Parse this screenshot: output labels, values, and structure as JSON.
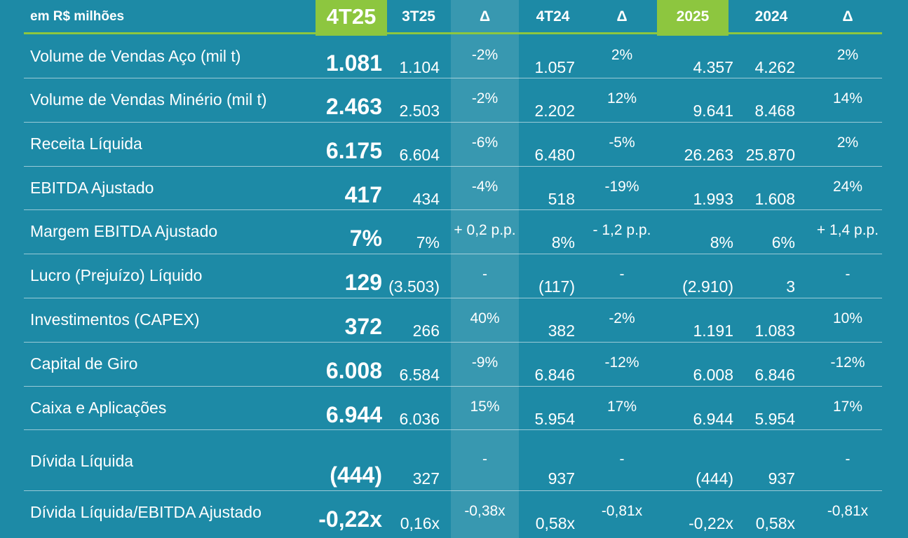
{
  "header": {
    "unit_label": "em R$ milhões",
    "col_4t25": "4T25",
    "col_3t25": "3T25",
    "col_delta1": "Δ",
    "col_4t24": "4T24",
    "col_delta2": "Δ",
    "col_2025": "2025",
    "col_2024": "2024",
    "col_delta3": "Δ"
  },
  "colors": {
    "background": "#1d8aa6",
    "accent": "#8dc63f",
    "text": "#ffffff"
  },
  "rows": [
    {
      "label": "Volume de Vendas Aço (mil t)",
      "q4_25": "1.081",
      "q3_25": "1.104",
      "d1": "-2%",
      "q4_24": "1.057",
      "d2": "2%",
      "y2025": "4.357",
      "y2024": "4.262",
      "d3": "2%"
    },
    {
      "label": "Volume de Vendas Minério (mil t)",
      "q4_25": "2.463",
      "q3_25": "2.503",
      "d1": "-2%",
      "q4_24": "2.202",
      "d2": "12%",
      "y2025": "9.641",
      "y2024": "8.468",
      "d3": "14%"
    },
    {
      "label": "Receita Líquida",
      "q4_25": "6.175",
      "q3_25": "6.604",
      "d1": "-6%",
      "q4_24": "6.480",
      "d2": "-5%",
      "y2025": "26.263",
      "y2024": "25.870",
      "d3": "2%"
    },
    {
      "label": "EBITDA Ajustado",
      "q4_25": "417",
      "q3_25": "434",
      "d1": "-4%",
      "q4_24": "518",
      "d2": "-19%",
      "y2025": "1.993",
      "y2024": "1.608",
      "d3": "24%"
    },
    {
      "label": "Margem EBITDA Ajustado",
      "q4_25": "7%",
      "q3_25": "7%",
      "d1": "+ 0,2 p.p.",
      "q4_24": "8%",
      "d2": "- 1,2 p.p.",
      "y2025": "8%",
      "y2024": "6%",
      "d3": "+ 1,4 p.p."
    },
    {
      "label": "Lucro (Prejuízo) Líquido",
      "q4_25": "129",
      "q3_25": "(3.503)",
      "d1": "-",
      "q4_24": "(117)",
      "d2": "-",
      "y2025": "(2.910)",
      "y2024": "3",
      "d3": "-"
    },
    {
      "label": "Investimentos (CAPEX)",
      "q4_25": "372",
      "q3_25": "266",
      "d1": "40%",
      "q4_24": "382",
      "d2": "-2%",
      "y2025": "1.191",
      "y2024": "1.083",
      "d3": "10%"
    },
    {
      "label": "Capital de Giro",
      "q4_25": "6.008",
      "q3_25": "6.584",
      "d1": "-9%",
      "q4_24": "6.846",
      "d2": "-12%",
      "y2025": "6.008",
      "y2024": "6.846",
      "d3": "-12%"
    },
    {
      "label": "Caixa e Aplicações",
      "q4_25": "6.944",
      "q3_25": "6.036",
      "d1": "15%",
      "q4_24": "5.954",
      "d2": "17%",
      "y2025": "6.944",
      "y2024": "5.954",
      "d3": "17%"
    },
    {
      "label": "Dívida Líquida",
      "q4_25": "(444)",
      "q3_25": "327",
      "d1": "-",
      "q4_24": "937",
      "d2": "-",
      "y2025": "(444)",
      "y2024": "937",
      "d3": "-"
    },
    {
      "label": "Dívida Líquida/EBITDA Ajustado",
      "q4_25": "-0,22x",
      "q3_25": "0,16x",
      "d1": "-0,38x",
      "q4_24": "0,58x",
      "d2": "-0,81x",
      "y2025": "-0,22x",
      "y2024": "0,58x",
      "d3": "-0,81x"
    }
  ]
}
